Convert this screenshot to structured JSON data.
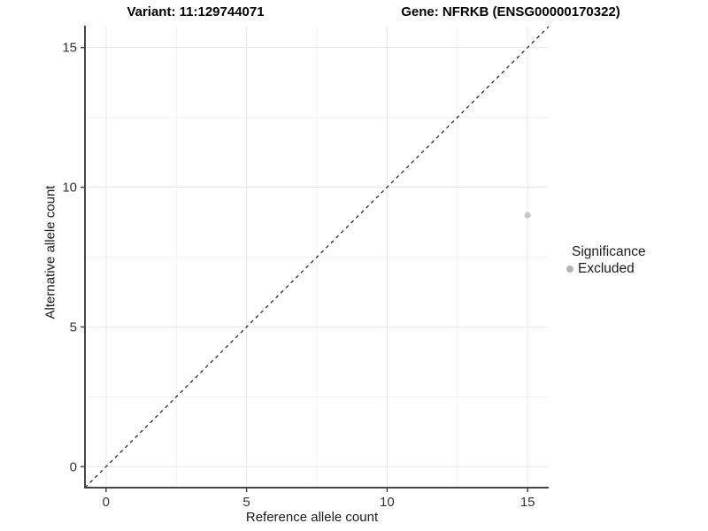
{
  "chart_data": {
    "type": "scatter",
    "titles": {
      "variant": "Variant: 11:129744071",
      "gene": "Gene: NFRKB (ENSG00000170322)"
    },
    "xlabel": "Reference allele count",
    "ylabel": "Alternative allele count",
    "xlim": [
      -0.75,
      15.75
    ],
    "ylim": [
      -0.75,
      15.75
    ],
    "x_ticks": [
      0,
      5,
      10,
      15
    ],
    "y_ticks": [
      0,
      5,
      10,
      15
    ],
    "x_minor": [
      2.5,
      7.5,
      12.5
    ],
    "y_minor": [
      2.5,
      7.5,
      12.5
    ],
    "grid": "major-and-minor",
    "identity_line": {
      "style": "dashed",
      "from": [
        -0.75,
        -0.75
      ],
      "to": [
        15.75,
        15.75
      ],
      "color": "#1a1a1a",
      "dash": "4 4"
    },
    "series": [
      {
        "name": "Excluded",
        "color": "#c9c9c9",
        "points": [
          {
            "x": 15,
            "y": 9
          }
        ]
      }
    ],
    "legend": {
      "position": "right",
      "title": "Significance",
      "entries": [
        {
          "label": "Excluded",
          "color": "#b3b3b3",
          "marker": "circle"
        }
      ]
    },
    "colors": {
      "grid_major": "#e7e7e7",
      "grid_minor": "#f1f1f1",
      "axis": "#464646",
      "tick_label": "#333333"
    }
  }
}
